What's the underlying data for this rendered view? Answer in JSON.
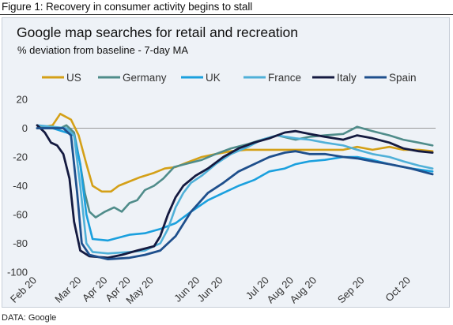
{
  "figure": {
    "caption": "Figure 1: Recovery in consumer activity begins to stall",
    "source": "DATA: Google"
  },
  "chart_data": {
    "type": "line",
    "title": "Google map searches for retail and recreation",
    "subtitle": "% deviation from baseline - 7-day MA",
    "xlabel": "",
    "ylabel": "",
    "ylim": [
      -100,
      20
    ],
    "yticks": [
      20,
      0,
      -20,
      -40,
      -60,
      -80,
      -100
    ],
    "xlim": [
      "2020-02-15",
      "2020-10-31"
    ],
    "xticks": [
      {
        "date": "2020-02-15",
        "label": "Feb 20"
      },
      {
        "date": "2020-03-15",
        "label": "Mar 20"
      },
      {
        "date": "2020-04-01",
        "label": "Apr 20"
      },
      {
        "date": "2020-04-16",
        "label": "Apr 20"
      },
      {
        "date": "2020-05-01",
        "label": "May 20"
      },
      {
        "date": "2020-05-31",
        "label": "Jun 20"
      },
      {
        "date": "2020-06-15",
        "label": "Jun 20"
      },
      {
        "date": "2020-07-15",
        "label": "Jul 20"
      },
      {
        "date": "2020-07-31",
        "label": "Aug 20"
      },
      {
        "date": "2020-08-15",
        "label": "Aug 20"
      },
      {
        "date": "2020-09-15",
        "label": "Sep 20"
      },
      {
        "date": "2020-10-15",
        "label": "Oct 20"
      }
    ],
    "legend_position": "top",
    "grid": false,
    "zero_line": true,
    "series": [
      {
        "name": "US",
        "color": "#d4a017",
        "width": 2.6,
        "points": [
          [
            "2020-02-15",
            0
          ],
          [
            "2020-02-25",
            2
          ],
          [
            "2020-03-01",
            10
          ],
          [
            "2020-03-08",
            6
          ],
          [
            "2020-03-13",
            -5
          ],
          [
            "2020-03-18",
            -25
          ],
          [
            "2020-03-22",
            -40
          ],
          [
            "2020-03-28",
            -44
          ],
          [
            "2020-04-03",
            -44
          ],
          [
            "2020-04-08",
            -40
          ],
          [
            "2020-04-15",
            -37
          ],
          [
            "2020-04-22",
            -34
          ],
          [
            "2020-05-01",
            -31
          ],
          [
            "2020-05-08",
            -28
          ],
          [
            "2020-05-15",
            -27
          ],
          [
            "2020-05-22",
            -24
          ],
          [
            "2020-06-01",
            -20
          ],
          [
            "2020-06-10",
            -18
          ],
          [
            "2020-06-20",
            -16
          ],
          [
            "2020-06-30",
            -15
          ],
          [
            "2020-07-10",
            -15
          ],
          [
            "2020-07-20",
            -15
          ],
          [
            "2020-08-01",
            -15
          ],
          [
            "2020-08-15",
            -15
          ],
          [
            "2020-09-01",
            -15
          ],
          [
            "2020-09-10",
            -13
          ],
          [
            "2020-09-20",
            -15
          ],
          [
            "2020-10-01",
            -13
          ],
          [
            "2020-10-10",
            -15
          ],
          [
            "2020-10-20",
            -15
          ],
          [
            "2020-10-29",
            -16
          ]
        ]
      },
      {
        "name": "Germany",
        "color": "#4f8c8a",
        "width": 2.6,
        "points": [
          [
            "2020-02-15",
            0
          ],
          [
            "2020-02-25",
            1
          ],
          [
            "2020-03-01",
            0
          ],
          [
            "2020-03-05",
            2
          ],
          [
            "2020-03-10",
            -3
          ],
          [
            "2020-03-14",
            -25
          ],
          [
            "2020-03-17",
            -45
          ],
          [
            "2020-03-20",
            -58
          ],
          [
            "2020-03-24",
            -62
          ],
          [
            "2020-03-30",
            -58
          ],
          [
            "2020-04-05",
            -55
          ],
          [
            "2020-04-10",
            -58
          ],
          [
            "2020-04-15",
            -52
          ],
          [
            "2020-04-20",
            -50
          ],
          [
            "2020-04-25",
            -43
          ],
          [
            "2020-05-01",
            -40
          ],
          [
            "2020-05-07",
            -35
          ],
          [
            "2020-05-14",
            -27
          ],
          [
            "2020-05-21",
            -25
          ],
          [
            "2020-06-01",
            -22
          ],
          [
            "2020-06-10",
            -18
          ],
          [
            "2020-06-20",
            -14
          ],
          [
            "2020-07-01",
            -11
          ],
          [
            "2020-07-10",
            -8
          ],
          [
            "2020-07-20",
            -5
          ],
          [
            "2020-08-01",
            -8
          ],
          [
            "2020-08-10",
            -6
          ],
          [
            "2020-08-20",
            -5
          ],
          [
            "2020-09-01",
            -4
          ],
          [
            "2020-09-10",
            1
          ],
          [
            "2020-09-20",
            -2
          ],
          [
            "2020-10-01",
            -5
          ],
          [
            "2020-10-10",
            -8
          ],
          [
            "2020-10-20",
            -10
          ],
          [
            "2020-10-29",
            -12
          ]
        ]
      },
      {
        "name": "UK",
        "color": "#1aa0de",
        "width": 2.6,
        "points": [
          [
            "2020-02-15",
            0
          ],
          [
            "2020-02-25",
            0
          ],
          [
            "2020-03-05",
            -3
          ],
          [
            "2020-03-10",
            -5
          ],
          [
            "2020-03-14",
            -25
          ],
          [
            "2020-03-18",
            -60
          ],
          [
            "2020-03-22",
            -77
          ],
          [
            "2020-04-01",
            -78
          ],
          [
            "2020-04-15",
            -74
          ],
          [
            "2020-04-25",
            -73
          ],
          [
            "2020-05-05",
            -70
          ],
          [
            "2020-05-15",
            -66
          ],
          [
            "2020-05-25",
            -58
          ],
          [
            "2020-06-05",
            -50
          ],
          [
            "2020-06-15",
            -45
          ],
          [
            "2020-06-25",
            -40
          ],
          [
            "2020-07-05",
            -36
          ],
          [
            "2020-07-15",
            -30
          ],
          [
            "2020-07-25",
            -28
          ],
          [
            "2020-08-01",
            -25
          ],
          [
            "2020-08-10",
            -23
          ],
          [
            "2020-08-20",
            -22
          ],
          [
            "2020-09-01",
            -20
          ],
          [
            "2020-09-10",
            -20
          ],
          [
            "2020-09-20",
            -22
          ],
          [
            "2020-10-01",
            -25
          ],
          [
            "2020-10-15",
            -28
          ],
          [
            "2020-10-29",
            -30
          ]
        ]
      },
      {
        "name": "France",
        "color": "#4fb0d8",
        "width": 2.6,
        "points": [
          [
            "2020-02-15",
            2
          ],
          [
            "2020-02-25",
            1
          ],
          [
            "2020-03-05",
            0
          ],
          [
            "2020-03-10",
            -5
          ],
          [
            "2020-03-14",
            -40
          ],
          [
            "2020-03-18",
            -80
          ],
          [
            "2020-03-22",
            -86
          ],
          [
            "2020-04-01",
            -87
          ],
          [
            "2020-04-15",
            -86
          ],
          [
            "2020-04-25",
            -85
          ],
          [
            "2020-05-05",
            -80
          ],
          [
            "2020-05-10",
            -70
          ],
          [
            "2020-05-15",
            -55
          ],
          [
            "2020-05-20",
            -45
          ],
          [
            "2020-05-25",
            -38
          ],
          [
            "2020-06-01",
            -33
          ],
          [
            "2020-06-10",
            -25
          ],
          [
            "2020-06-20",
            -18
          ],
          [
            "2020-07-01",
            -13
          ],
          [
            "2020-07-10",
            -8
          ],
          [
            "2020-07-20",
            -5
          ],
          [
            "2020-08-01",
            -7
          ],
          [
            "2020-08-10",
            -8
          ],
          [
            "2020-08-20",
            -10
          ],
          [
            "2020-09-01",
            -12
          ],
          [
            "2020-09-10",
            -15
          ],
          [
            "2020-09-20",
            -18
          ],
          [
            "2020-10-01",
            -20
          ],
          [
            "2020-10-10",
            -23
          ],
          [
            "2020-10-20",
            -26
          ],
          [
            "2020-10-29",
            -28
          ]
        ]
      },
      {
        "name": "Italy",
        "color": "#141a40",
        "width": 2.8,
        "points": [
          [
            "2020-02-15",
            2
          ],
          [
            "2020-02-20",
            -3
          ],
          [
            "2020-02-24",
            -10
          ],
          [
            "2020-02-28",
            -12
          ],
          [
            "2020-03-03",
            -18
          ],
          [
            "2020-03-07",
            -35
          ],
          [
            "2020-03-10",
            -65
          ],
          [
            "2020-03-14",
            -85
          ],
          [
            "2020-03-20",
            -89
          ],
          [
            "2020-04-01",
            -90
          ],
          [
            "2020-04-10",
            -88
          ],
          [
            "2020-04-20",
            -85
          ],
          [
            "2020-05-01",
            -82
          ],
          [
            "2020-05-05",
            -75
          ],
          [
            "2020-05-10",
            -60
          ],
          [
            "2020-05-15",
            -48
          ],
          [
            "2020-05-20",
            -40
          ],
          [
            "2020-05-28",
            -33
          ],
          [
            "2020-06-05",
            -28
          ],
          [
            "2020-06-15",
            -20
          ],
          [
            "2020-06-25",
            -14
          ],
          [
            "2020-07-05",
            -10
          ],
          [
            "2020-07-15",
            -7
          ],
          [
            "2020-07-25",
            -3
          ],
          [
            "2020-08-01",
            -2
          ],
          [
            "2020-08-10",
            -4
          ],
          [
            "2020-08-20",
            -6
          ],
          [
            "2020-09-01",
            -8
          ],
          [
            "2020-09-10",
            -5
          ],
          [
            "2020-09-20",
            -7
          ],
          [
            "2020-10-01",
            -10
          ],
          [
            "2020-10-10",
            -14
          ],
          [
            "2020-10-20",
            -16
          ],
          [
            "2020-10-29",
            -17
          ]
        ]
      },
      {
        "name": "Spain",
        "color": "#1e4f8c",
        "width": 2.8,
        "points": [
          [
            "2020-02-15",
            0
          ],
          [
            "2020-02-25",
            0
          ],
          [
            "2020-03-03",
            0
          ],
          [
            "2020-03-08",
            -5
          ],
          [
            "2020-03-12",
            -45
          ],
          [
            "2020-03-15",
            -80
          ],
          [
            "2020-03-20",
            -88
          ],
          [
            "2020-04-01",
            -91
          ],
          [
            "2020-04-15",
            -90
          ],
          [
            "2020-04-25",
            -88
          ],
          [
            "2020-05-05",
            -85
          ],
          [
            "2020-05-15",
            -75
          ],
          [
            "2020-05-25",
            -58
          ],
          [
            "2020-06-05",
            -45
          ],
          [
            "2020-06-15",
            -38
          ],
          [
            "2020-06-25",
            -30
          ],
          [
            "2020-07-05",
            -25
          ],
          [
            "2020-07-15",
            -20
          ],
          [
            "2020-07-25",
            -17
          ],
          [
            "2020-08-01",
            -16
          ],
          [
            "2020-08-10",
            -18
          ],
          [
            "2020-08-20",
            -18
          ],
          [
            "2020-09-01",
            -20
          ],
          [
            "2020-09-10",
            -21
          ],
          [
            "2020-09-20",
            -23
          ],
          [
            "2020-10-01",
            -25
          ],
          [
            "2020-10-15",
            -28
          ],
          [
            "2020-10-29",
            -32
          ]
        ]
      }
    ]
  }
}
